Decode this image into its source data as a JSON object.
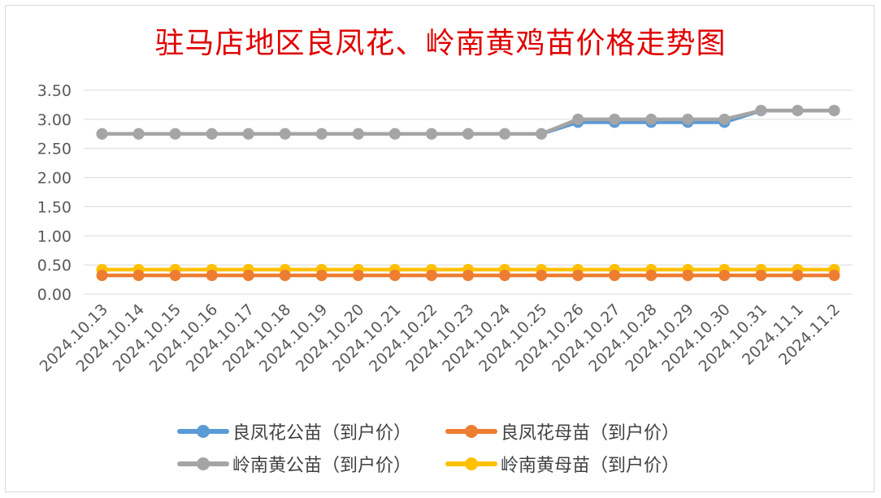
{
  "chart_data": {
    "type": "line",
    "title": "驻马店地区良凤花、岭南黄鸡苗价格走势图",
    "xlabel": "",
    "ylabel": "",
    "categories": [
      "2024.10.13",
      "2024.10.14",
      "2024.10.15",
      "2024.10.16",
      "2024.10.17",
      "2024.10.18",
      "2024.10.19",
      "2024.10.20",
      "2024.10.21",
      "2024.10.22",
      "2024.10.23",
      "2024.10.24",
      "2024.10.25",
      "2024.10.26",
      "2024.10.27",
      "2024.10.28",
      "2024.10.29",
      "2024.10.30",
      "2024.10.31",
      "2024.11.1",
      "2024.11.2"
    ],
    "ylim": [
      0,
      3.5
    ],
    "yticks": [
      "0.00",
      "0.50",
      "1.00",
      "1.50",
      "2.00",
      "2.50",
      "3.00",
      "3.50"
    ],
    "grid": true,
    "legend_position": "bottom",
    "series": [
      {
        "name": "良凤花公苗（到户价）",
        "color": "#5b9bd5",
        "values": [
          2.75,
          2.75,
          2.75,
          2.75,
          2.75,
          2.75,
          2.75,
          2.75,
          2.75,
          2.75,
          2.75,
          2.75,
          2.75,
          2.95,
          2.95,
          2.95,
          2.95,
          2.95,
          3.15,
          3.15,
          3.15
        ]
      },
      {
        "name": "良凤花母苗（到户价）",
        "color": "#ed7d31",
        "values": [
          0.32,
          0.32,
          0.32,
          0.32,
          0.32,
          0.32,
          0.32,
          0.32,
          0.32,
          0.32,
          0.32,
          0.32,
          0.32,
          0.32,
          0.32,
          0.32,
          0.32,
          0.32,
          0.32,
          0.32,
          0.32
        ]
      },
      {
        "name": "岭南黄公苗（到户价）",
        "color": "#a5a5a5",
        "values": [
          2.75,
          2.75,
          2.75,
          2.75,
          2.75,
          2.75,
          2.75,
          2.75,
          2.75,
          2.75,
          2.75,
          2.75,
          2.75,
          3.0,
          3.0,
          3.0,
          3.0,
          3.0,
          3.15,
          3.15,
          3.15
        ]
      },
      {
        "name": "岭南黄母苗（到户价）",
        "color": "#ffc000",
        "values": [
          0.42,
          0.42,
          0.42,
          0.42,
          0.42,
          0.42,
          0.42,
          0.42,
          0.42,
          0.42,
          0.42,
          0.42,
          0.42,
          0.42,
          0.42,
          0.42,
          0.42,
          0.42,
          0.42,
          0.42,
          0.42
        ]
      }
    ]
  }
}
